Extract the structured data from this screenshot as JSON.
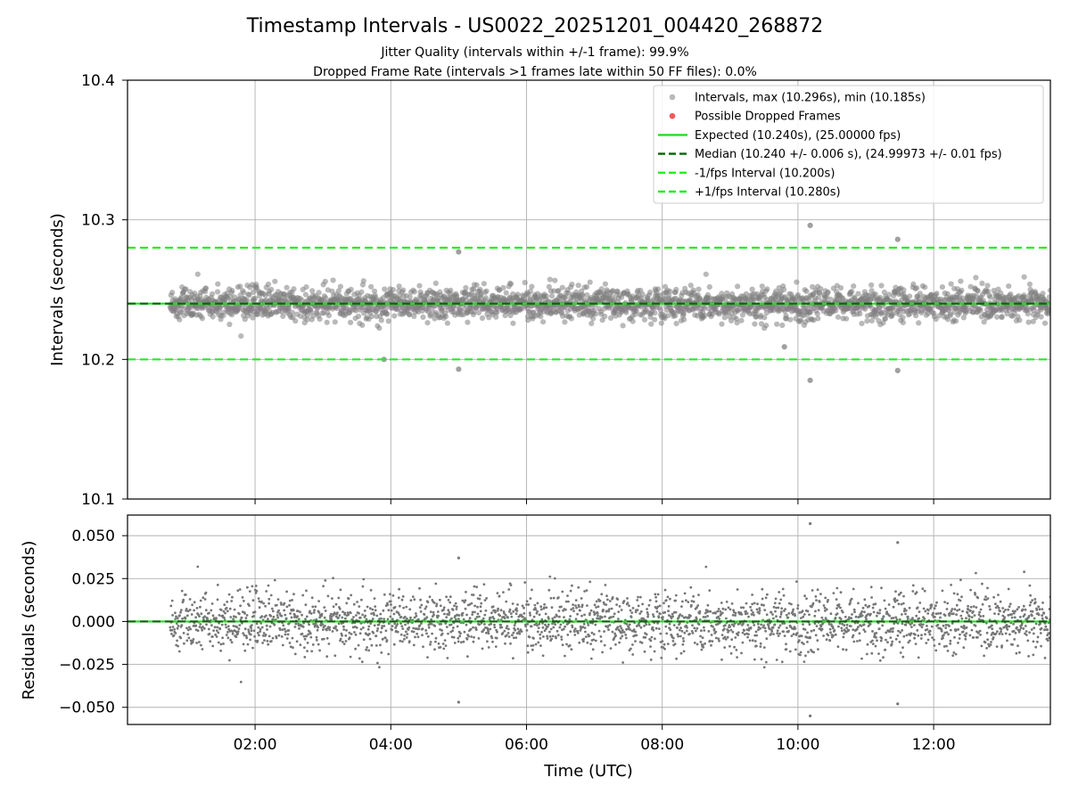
{
  "chart_data": [
    {
      "type": "scatter",
      "title": "Timestamp Intervals - US0022_20251201_004420_268872",
      "subtitles": [
        "Jitter Quality (intervals within +/-1 frame): 99.9%",
        "Dropped Frame Rate (intervals >1 frames late within 50 FF files): 0.0%"
      ],
      "ylabel": "Intervals (seconds)",
      "ylim": [
        10.1,
        10.4
      ],
      "yticks": [
        "10.1",
        "10.2",
        "10.3",
        "10.4"
      ],
      "ytick_values": [
        10.1,
        10.2,
        10.3,
        10.4
      ],
      "xlim_hours": [
        0.12,
        13.72
      ],
      "grid": true,
      "legend_position": "top-right",
      "legend": [
        {
          "label": "Intervals, max (10.296s), min (10.185s)",
          "kind": "marker",
          "color": "#808080"
        },
        {
          "label": "Possible Dropped Frames",
          "kind": "marker",
          "color": "#f03c3c"
        },
        {
          "label": "Expected (10.240s), (25.00000 fps)",
          "kind": "solid",
          "color": "#22dd22"
        },
        {
          "label": "Median (10.240 +/- 0.006 s), (24.99973 +/- 0.01 fps)",
          "kind": "dashed",
          "color": "#006400"
        },
        {
          "label": "-1/fps Interval (10.200s)",
          "kind": "dashed",
          "color": "#22ee22"
        },
        {
          "label": "+1/fps Interval (10.280s)",
          "kind": "dashed",
          "color": "#22ee22"
        }
      ],
      "reference_lines": [
        {
          "name": "expected",
          "value": 10.24,
          "style": "solid",
          "color": "#22dd22"
        },
        {
          "name": "median",
          "value": 10.24,
          "style": "dashed",
          "color": "#006400"
        },
        {
          "name": "minus-one-fps",
          "value": 10.2,
          "style": "dashed",
          "color": "#22ee22"
        },
        {
          "name": "plus-one-fps",
          "value": 10.28,
          "style": "dashed",
          "color": "#22ee22"
        }
      ],
      "series": [
        {
          "name": "Intervals",
          "color": "#808080",
          "summary": {
            "x_start_hours": 0.75,
            "x_end_hours": 13.72,
            "median": 10.24,
            "std": 0.006,
            "max": 10.296,
            "min": 10.185
          },
          "notable_points": [
            {
              "x_hours": 10.18,
              "y": 10.296
            },
            {
              "x_hours": 10.18,
              "y": 10.185
            },
            {
              "x_hours": 11.47,
              "y": 10.286
            },
            {
              "x_hours": 11.47,
              "y": 10.192
            },
            {
              "x_hours": 5.0,
              "y": 10.193
            },
            {
              "x_hours": 5.0,
              "y": 10.277
            },
            {
              "x_hours": 3.9,
              "y": 10.2
            },
            {
              "x_hours": 9.8,
              "y": 10.209
            }
          ]
        },
        {
          "name": "Possible Dropped Frames",
          "color": "#f03c3c",
          "points": []
        }
      ]
    },
    {
      "type": "scatter",
      "xlabel": "Time (UTC)",
      "ylabel": "Residuals (seconds)",
      "ylim": [
        -0.06,
        0.062
      ],
      "yticks": [
        "0.050",
        "0.025",
        "0.000",
        "−0.025",
        "−0.050"
      ],
      "ytick_values": [
        0.05,
        0.025,
        0.0,
        -0.025,
        -0.05
      ],
      "xticks": [
        "02:00",
        "04:00",
        "06:00",
        "08:00",
        "10:00",
        "12:00"
      ],
      "xtick_values_hours": [
        2,
        4,
        6,
        8,
        10,
        12
      ],
      "xlim_hours": [
        0.12,
        13.72
      ],
      "grid": true,
      "reference_lines": [
        {
          "name": "zero",
          "value": 0.0,
          "style": "solid",
          "color": "#22dd22"
        },
        {
          "name": "median-zero",
          "value": 0.0,
          "style": "dashed",
          "color": "#006400"
        }
      ],
      "series": [
        {
          "name": "Residuals",
          "color": "#777777",
          "summary": {
            "x_start_hours": 0.75,
            "x_end_hours": 13.72,
            "std": 0.009,
            "max": 0.057,
            "min": -0.055
          },
          "notable_points": [
            {
              "x_hours": 10.18,
              "y": 0.057
            },
            {
              "x_hours": 10.18,
              "y": -0.055
            },
            {
              "x_hours": 11.47,
              "y": 0.046
            },
            {
              "x_hours": 11.47,
              "y": -0.048
            },
            {
              "x_hours": 5.0,
              "y": -0.047
            },
            {
              "x_hours": 5.0,
              "y": 0.037
            }
          ]
        }
      ]
    }
  ]
}
